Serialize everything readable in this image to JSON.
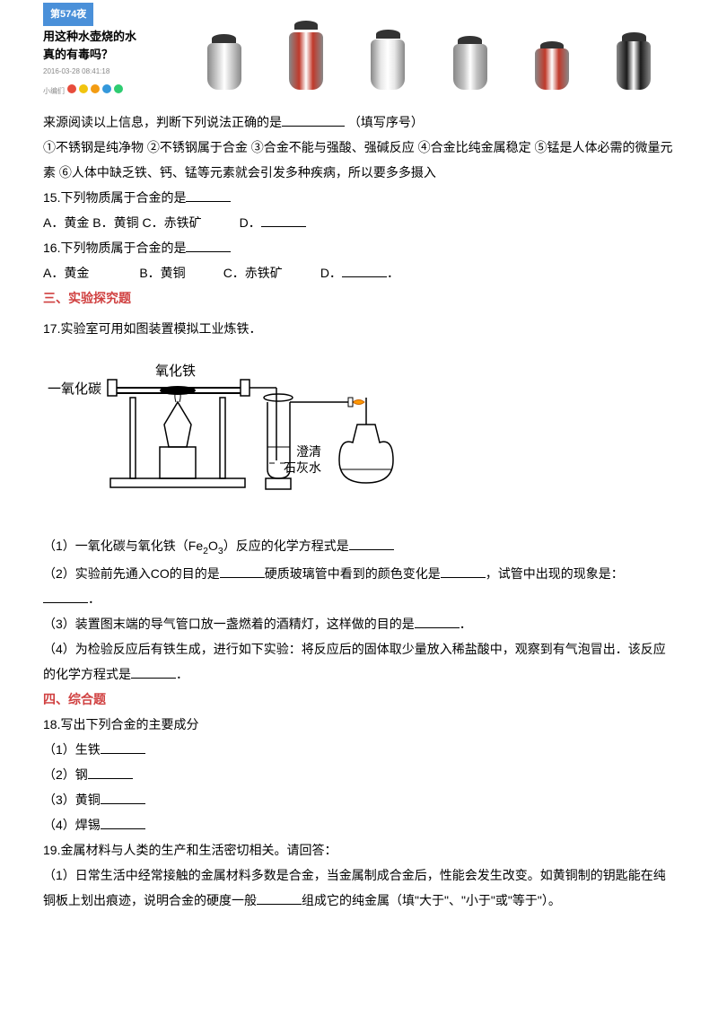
{
  "banner": {
    "tag": "第574夜",
    "title_line1": "用这种水壶烧的水",
    "title_line2": "真的有毒吗？",
    "date": "2016-03-28 08:41:18",
    "icon_label": "小编们",
    "icon_colors": [
      "#e74c3c",
      "#f1c40f",
      "#f39c12",
      "#3498db",
      "#2ecc71"
    ],
    "kettle_colors": [
      "#d0d0d0",
      "#c0392b",
      "#e8e8e8",
      "#c0c0c0",
      "#c0392b",
      "#1a1a1a"
    ]
  },
  "source_line": "来源阅读以上信息，判断下列说法正确的是",
  "source_hint": " （填写序号）",
  "statements": "①不锈钢是纯净物  ②不锈钢属于合金  ③合金不能与强酸、强碱反应  ④合金比纯金属稳定  ⑤锰是人体必需的微量元素  ⑥人体中缺乏铁、钙、锰等元素就会引发多种疾病，所以要多多摄入",
  "q15": {
    "stem": "15.下列物质属于合金的是",
    "a": "A．黄金",
    "b": "B．黄铜",
    "c": "C．赤铁矿",
    "d": "D．"
  },
  "q16": {
    "stem": "16.下列物质属于合金的是",
    "a": "A．黄金",
    "b": "B．黄铜",
    "c": "C．赤铁矿",
    "d": "D．",
    "d_suffix": "．"
  },
  "section3": "三、实验探究题",
  "q17": {
    "stem": "17.实验室可用如图装置模拟工业炼铁．",
    "diagram": {
      "label_co": "一氧化碳",
      "label_feo": "氧化铁",
      "label_lime1": "澄清",
      "label_lime2": "石灰水"
    },
    "p1_pre": "（1）一氧化碳与氧化铁（Fe",
    "p1_sub1": "2",
    "p1_mid": "O",
    "p1_sub2": "3",
    "p1_post": "）反应的化学方程式是",
    "p2a": "（2）实验前先通入CO的目的是",
    "p2b": "硬质玻璃管中看到的颜色变化是",
    "p2c": "，试管中出现的现象是：",
    "p2d": "．",
    "p3": "（3）装置图末端的导气管口放一盏燃着的酒精灯，这样做的目的是",
    "p3_end": "．",
    "p4a": "（4）为检验反应后有铁生成，进行如下实验：将反应后的固体取少量放入稀盐酸中，观察到有气泡冒出．该反应的化学方程式是",
    "p4_end": "．"
  },
  "section4": "四、综合题",
  "q18": {
    "stem": "18.写出下列合金的主要成分",
    "i1": "（1）生铁",
    "i2": "（2）钢",
    "i3": "（3）黄铜",
    "i4": "（4）焊锡"
  },
  "q19": {
    "stem": "19.金属材料与人类的生产和生活密切相关。请回答：",
    "p1a": "（1）日常生活中经常接触的金属材料多数是合金，当金属制成合金后，性能会发生改变。如黄铜制的钥匙能在纯铜板上划出痕迹，说明合金的硬度一般",
    "p1b": "组成它的纯金属（填\"大于\"、\"小于\"或\"等于\"）。"
  }
}
